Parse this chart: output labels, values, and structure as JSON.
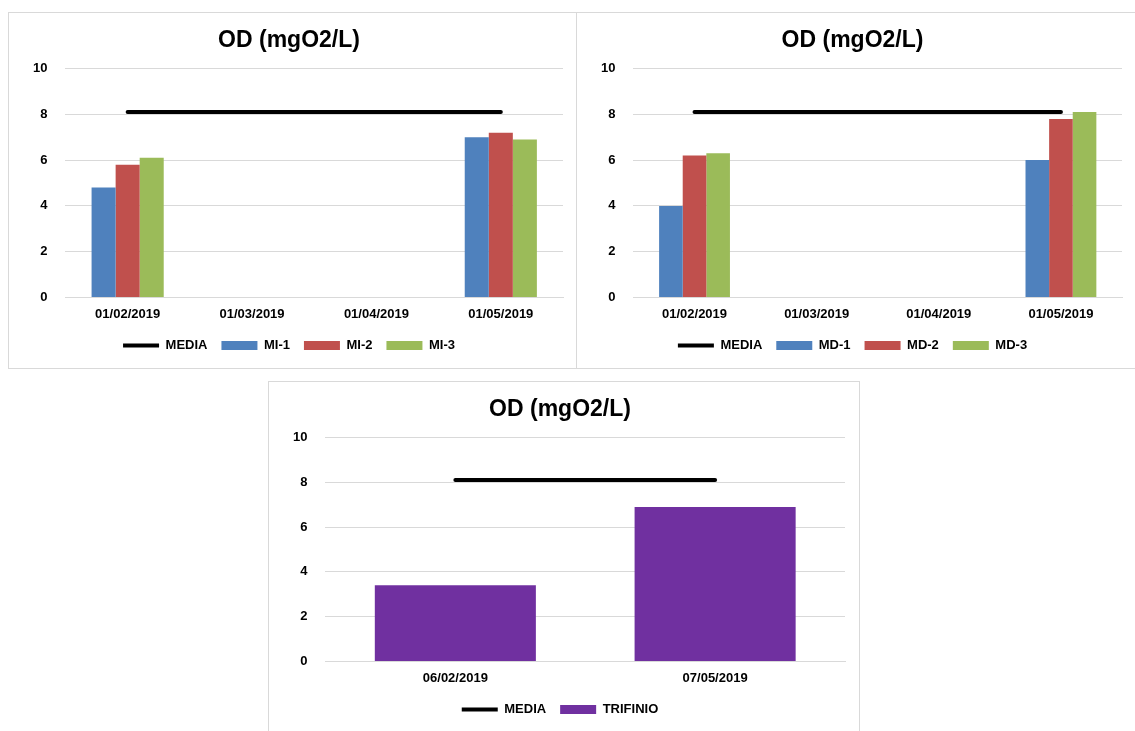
{
  "chart_data": [
    {
      "type": "bar",
      "title": "OD (mgO2/L)",
      "categories": [
        "01/02/2019",
        "01/03/2019",
        "01/04/2019",
        "01/05/2019"
      ],
      "series": [
        {
          "name": "MI-1",
          "color": "#4f81bd",
          "values": [
            4.8,
            null,
            null,
            7.0
          ]
        },
        {
          "name": "MI-2",
          "color": "#c0504d",
          "values": [
            5.8,
            null,
            null,
            7.2
          ]
        },
        {
          "name": "MI-3",
          "color": "#9bbb59",
          "values": [
            6.1,
            null,
            null,
            6.9
          ]
        },
        {
          "name": "MEDIA",
          "type": "line",
          "color": "#000000",
          "values": [
            8.1,
            8.1,
            8.1,
            8.1
          ]
        }
      ],
      "ylim": [
        0,
        10
      ],
      "yticks": [
        0,
        2,
        4,
        6,
        8,
        10
      ],
      "grid": "y",
      "legend": "bottom",
      "marker": "none"
    },
    {
      "type": "bar",
      "title": "OD (mgO2/L)",
      "categories": [
        "01/02/2019",
        "01/03/2019",
        "01/04/2019",
        "01/05/2019"
      ],
      "series": [
        {
          "name": "MD-1",
          "color": "#4f81bd",
          "values": [
            4.0,
            null,
            null,
            6.0
          ]
        },
        {
          "name": "MD-2",
          "color": "#c0504d",
          "values": [
            6.2,
            null,
            null,
            7.8
          ]
        },
        {
          "name": "MD-3",
          "color": "#9bbb59",
          "values": [
            6.3,
            null,
            null,
            8.1
          ]
        },
        {
          "name": "MEDIA",
          "type": "line",
          "color": "#000000",
          "values": [
            8.1,
            8.1,
            8.1,
            8.1
          ]
        }
      ],
      "ylim": [
        0,
        10
      ],
      "yticks": [
        0,
        2,
        4,
        6,
        8,
        10
      ],
      "grid": "y",
      "legend": "bottom",
      "marker": "none"
    },
    {
      "type": "bar",
      "title": "OD (mgO2/L)",
      "categories": [
        "06/02/2019",
        "07/05/2019"
      ],
      "series": [
        {
          "name": "TRIFINIO",
          "color": "#7030a0",
          "values": [
            3.4,
            6.9
          ]
        },
        {
          "name": "MEDIA",
          "type": "line",
          "color": "#000000",
          "values": [
            8.1,
            8.1
          ]
        }
      ],
      "ylim": [
        0,
        10
      ],
      "yticks": [
        0,
        2,
        4,
        6,
        8,
        10
      ],
      "grid": "y",
      "legend": "bottom",
      "marker": "none"
    }
  ]
}
